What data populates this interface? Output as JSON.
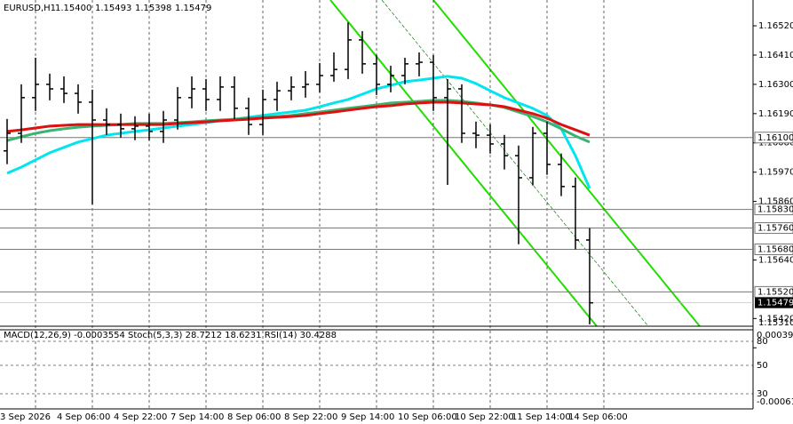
{
  "chart_data": {
    "type": "ohlc",
    "title": "EURUSD,H1",
    "header_values": [
      "1.15400",
      "1.15493",
      "1.15398",
      "1.15479"
    ],
    "color": "#000000",
    "categories": [
      "3 Sep 2026",
      null,
      null,
      null,
      "4 Sep 06:00",
      null,
      null,
      null,
      "4 Sep 22:00",
      null,
      null,
      null,
      "7 Sep 14:00",
      null,
      null,
      null,
      "8 Sep 06:00",
      null,
      null,
      null,
      "8 Sep 22:00",
      null,
      null,
      null,
      "9 Sep 14:00",
      null,
      null,
      null,
      "10 Sep 06:00",
      null,
      null,
      null,
      "10 Sep 22:00",
      null,
      null,
      null,
      "11 Sep 14:00",
      null,
      null,
      null,
      "14 Sep 06:00",
      null
    ],
    "open": [
      1.1605,
      1.16116,
      1.1625,
      1.163,
      1.16283,
      1.16266,
      1.16233,
      1.16166,
      1.16149,
      1.16133,
      1.16143,
      1.16123,
      1.16166,
      1.1625,
      1.16283,
      1.16243,
      1.1629,
      1.1621,
      1.16149,
      1.16243,
      1.16276,
      1.1629,
      1.163,
      1.16333,
      1.16356,
      1.16467,
      1.16377,
      1.163,
      1.16333,
      1.16377,
      1.16383,
      1.1625,
      1.16283,
      1.16116,
      1.16109,
      1.16076,
      1.16032,
      1.15949,
      1.16116,
      1.15999,
      1.15916,
      1.15715
    ],
    "high": [
      1.1617,
      1.163,
      1.164,
      1.1634,
      1.1633,
      1.163,
      1.1628,
      1.1621,
      1.1619,
      1.1618,
      1.1619,
      1.162,
      1.1629,
      1.1633,
      1.1632,
      1.1633,
      1.1633,
      1.1625,
      1.1628,
      1.1631,
      1.1633,
      1.1635,
      1.1638,
      1.1642,
      1.16533,
      1.165,
      1.1641,
      1.1637,
      1.164,
      1.1642,
      1.1641,
      1.1632,
      1.163,
      1.1616,
      1.1615,
      1.1611,
      1.1607,
      1.1614,
      1.1616,
      1.1604,
      1.1595,
      1.1576
    ],
    "low": [
      1.16,
      1.1608,
      1.162,
      1.1624,
      1.1623,
      1.1619,
      1.15849,
      1.1611,
      1.161,
      1.1609,
      1.1609,
      1.1608,
      1.1613,
      1.1621,
      1.162,
      1.162,
      1.1617,
      1.1611,
      1.1611,
      1.162,
      1.1624,
      1.1625,
      1.1627,
      1.1631,
      1.1632,
      1.1634,
      1.1626,
      1.1627,
      1.163,
      1.1633,
      1.162,
      1.15922,
      1.1608,
      1.1606,
      1.1604,
      1.1598,
      1.15699,
      1.1592,
      1.1596,
      1.1588,
      1.1568,
      1.15398
    ],
    "close": [
      1.16116,
      1.1625,
      1.163,
      1.16283,
      1.16266,
      1.16233,
      1.16166,
      1.16149,
      1.16133,
      1.16143,
      1.16123,
      1.16166,
      1.1625,
      1.16283,
      1.16243,
      1.1629,
      1.1621,
      1.16149,
      1.16243,
      1.16276,
      1.1629,
      1.163,
      1.16333,
      1.16356,
      1.16467,
      1.16377,
      1.163,
      1.16333,
      1.16377,
      1.16383,
      1.1625,
      1.16283,
      1.16116,
      1.16109,
      1.16076,
      1.16032,
      1.15949,
      1.16116,
      1.15999,
      1.15916,
      1.15715,
      1.15479
    ],
    "series": [
      {
        "color": "#00e5ee",
        "values": [
          1.15966,
          1.15989,
          1.16016,
          1.16043,
          1.16063,
          1.16083,
          1.16096,
          1.16109,
          1.16116,
          1.16123,
          1.16129,
          1.16136,
          1.16143,
          1.16149,
          1.16156,
          1.16163,
          1.16169,
          1.16176,
          1.16183,
          1.1619,
          1.16196,
          1.16203,
          1.16216,
          1.1623,
          1.16243,
          1.16263,
          1.16283,
          1.16296,
          1.1631,
          1.16316,
          1.16323,
          1.1633,
          1.16323,
          1.16303,
          1.16276,
          1.1625,
          1.1623,
          1.1621,
          1.16183,
          1.16133,
          1.16032,
          1.15909
        ]
      },
      {
        "color": "#3cb371",
        "values": [
          1.16089,
          1.16103,
          1.16116,
          1.16126,
          1.16133,
          1.16139,
          1.16143,
          1.16146,
          1.16149,
          1.16153,
          1.16153,
          1.16153,
          1.16156,
          1.16159,
          1.16163,
          1.16166,
          1.16169,
          1.16173,
          1.16176,
          1.16179,
          1.16183,
          1.1619,
          1.16196,
          1.16203,
          1.1621,
          1.16216,
          1.16223,
          1.1623,
          1.16233,
          1.16236,
          1.1624,
          1.1624,
          1.16236,
          1.1623,
          1.16223,
          1.16213,
          1.16196,
          1.16179,
          1.16159,
          1.16133,
          1.16106,
          1.16083
        ]
      },
      {
        "color": "#dd1111",
        "values": [
          1.16123,
          1.16129,
          1.16136,
          1.16143,
          1.16146,
          1.16149,
          1.16149,
          1.16149,
          1.16149,
          1.16149,
          1.16149,
          1.16149,
          1.16153,
          1.16156,
          1.16159,
          1.16163,
          1.16166,
          1.16169,
          1.16173,
          1.16176,
          1.16179,
          1.16183,
          1.1619,
          1.16196,
          1.16203,
          1.1621,
          1.16216,
          1.1622,
          1.16226,
          1.1623,
          1.16233,
          1.16233,
          1.1623,
          1.16226,
          1.16223,
          1.16216,
          1.16203,
          1.1619,
          1.16173,
          1.16149,
          1.16129,
          1.16109
        ]
      }
    ],
    "ylim": [
      1.15391,
      1.16617
    ],
    "yticks": [
      {
        "value": 1.1652,
        "label": "1.16520"
      },
      {
        "value": 1.1641,
        "label": "1.16410"
      },
      {
        "value": 1.163,
        "label": "1.16300"
      },
      {
        "value": 1.1619,
        "label": "1.16190"
      },
      {
        "value": 1.1608,
        "label": "1.16080"
      },
      {
        "value": 1.1597,
        "label": "1.15970"
      },
      {
        "value": 1.1586,
        "label": "1.15860"
      },
      {
        "value": 1.1564,
        "label": "1.15640"
      },
      {
        "value": 1.1542,
        "label": "1.15420"
      },
      {
        "value": 1.1531,
        "label": "1.15310"
      }
    ],
    "levels": [
      {
        "value": 1.161,
        "label": "1.16100"
      },
      {
        "value": 1.1583,
        "label": "1.15830"
      },
      {
        "value": 1.1576,
        "label": "1.15760"
      },
      {
        "value": 1.1568,
        "label": "1.15680"
      },
      {
        "value": 1.1552,
        "label": "1.15520"
      }
    ],
    "current": {
      "value": 1.15479,
      "label": "1.15479"
    },
    "grid": true,
    "indicator_title": "MACD(12,26,9) -0.0003554  Stoch(5,3,3) 28.7212 18.6231  RSI(14) 30.4288",
    "indicator_labels": [
      "0.00039",
      "80",
      "50",
      "30",
      "-0.000612"
    ]
  }
}
